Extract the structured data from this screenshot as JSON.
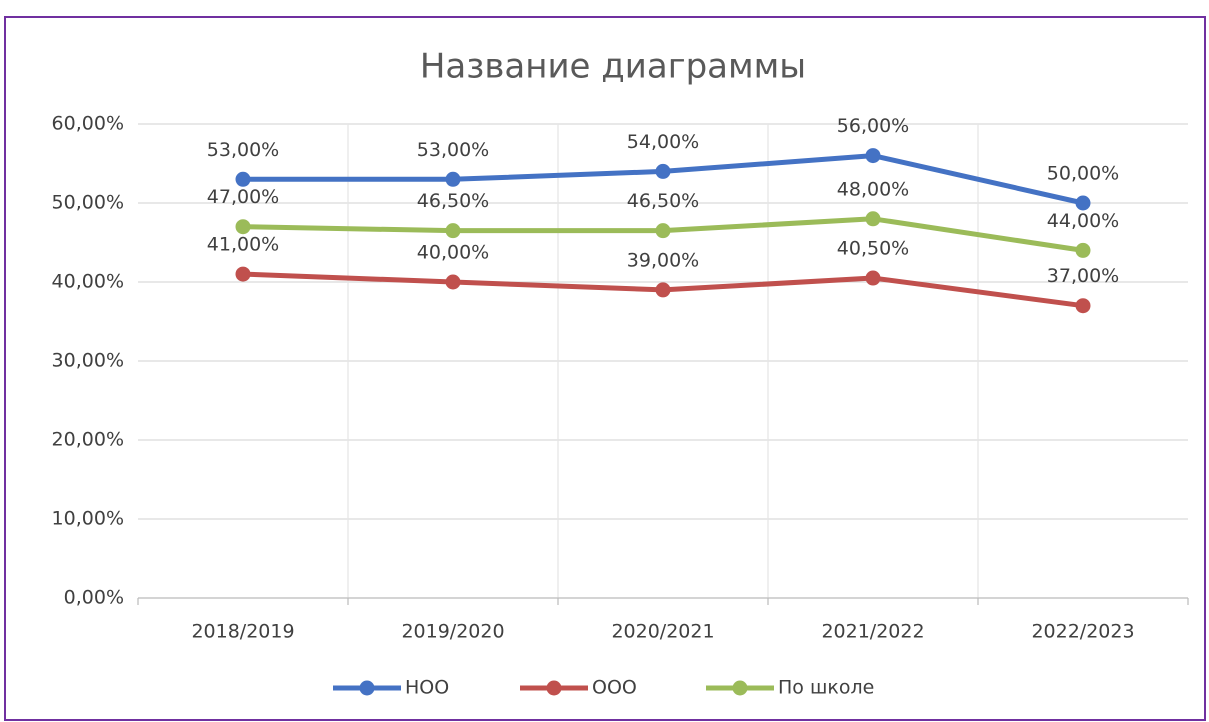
{
  "chart_data": {
    "type": "line",
    "title": "Название диаграммы",
    "categories": [
      "2018/2019",
      "2019/2020",
      "2020/2021",
      "2021/2022",
      "2022/2023"
    ],
    "series": [
      {
        "name": "НОО",
        "color": "#4472c4",
        "values": [
          53,
          53,
          54,
          56,
          50
        ],
        "value_labels": [
          "53,00%",
          "53,00%",
          "54,00%",
          "56,00%",
          "50,00%"
        ]
      },
      {
        "name": "ООО",
        "color": "#c0504d",
        "values": [
          41,
          40,
          39,
          40.5,
          37
        ],
        "value_labels": [
          "41,00%",
          "40,00%",
          "39,00%",
          "40,50%",
          "37,00%"
        ]
      },
      {
        "name": "По школе",
        "color": "#9bbb59",
        "values": [
          47,
          46.5,
          46.5,
          48,
          44
        ],
        "value_labels": [
          "47,00%",
          "46,50%",
          "46,50%",
          "48,00%",
          "44,00%"
        ]
      }
    ],
    "ylim": [
      0,
      60
    ],
    "yticks": [
      {
        "value": 0,
        "label": "0,00%"
      },
      {
        "value": 10,
        "label": "10,00%"
      },
      {
        "value": 20,
        "label": "20,00%"
      },
      {
        "value": 30,
        "label": "30,00%"
      },
      {
        "value": 40,
        "label": "40,00%"
      },
      {
        "value": 50,
        "label": "50,00%"
      },
      {
        "value": 60,
        "label": "60,00%"
      }
    ],
    "grid": true
  }
}
